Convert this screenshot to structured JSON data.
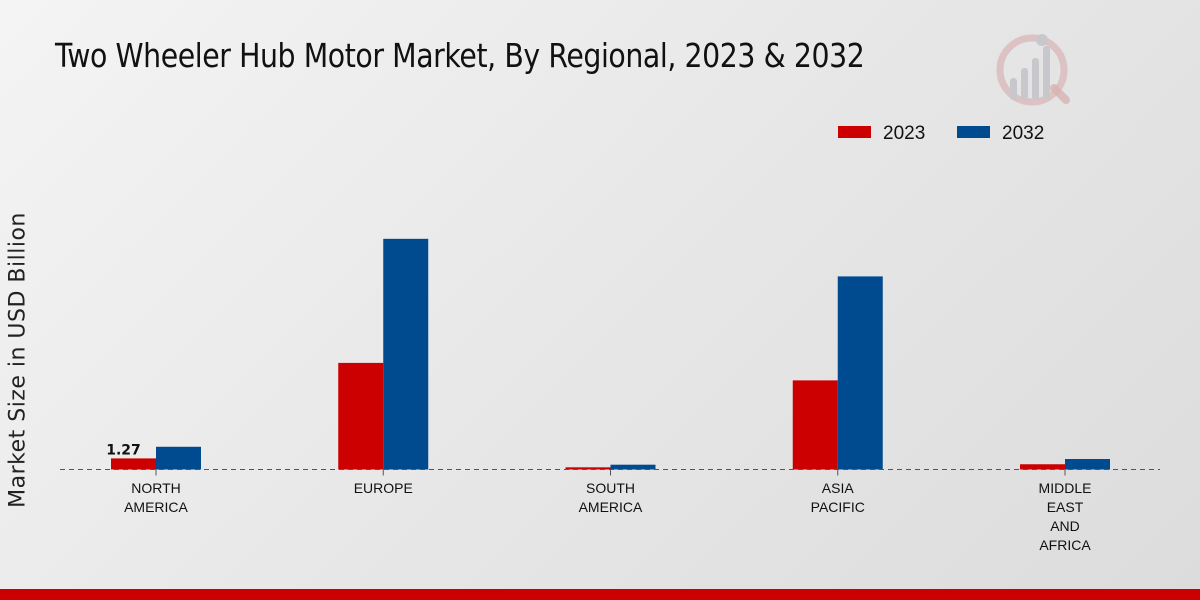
{
  "chart_data": {
    "type": "bar",
    "title": "Two Wheeler Hub Motor Market, By Regional, 2023 & 2032",
    "xlabel": "",
    "ylabel": "Market Size in USD Billion",
    "categories": [
      [
        "NORTH",
        "AMERICA"
      ],
      [
        "EUROPE"
      ],
      [
        "SOUTH",
        "AMERICA"
      ],
      [
        "ASIA",
        "PACIFIC"
      ],
      [
        "MIDDLE",
        "EAST",
        "AND",
        "AFRICA"
      ]
    ],
    "series": [
      {
        "name": "2023",
        "color": "#cc0000",
        "values": [
          1.27,
          12.2,
          0.25,
          10.2,
          0.6
        ]
      },
      {
        "name": "2032",
        "color": "#004a8f",
        "values": [
          2.6,
          26.4,
          0.55,
          22.1,
          1.2
        ]
      }
    ],
    "data_labels": [
      {
        "series": 0,
        "index": 0,
        "text": "1.27"
      }
    ],
    "ylim": [
      0,
      40
    ],
    "grid": false,
    "legend_position": "top-right",
    "baseline_style": "dashed"
  }
}
